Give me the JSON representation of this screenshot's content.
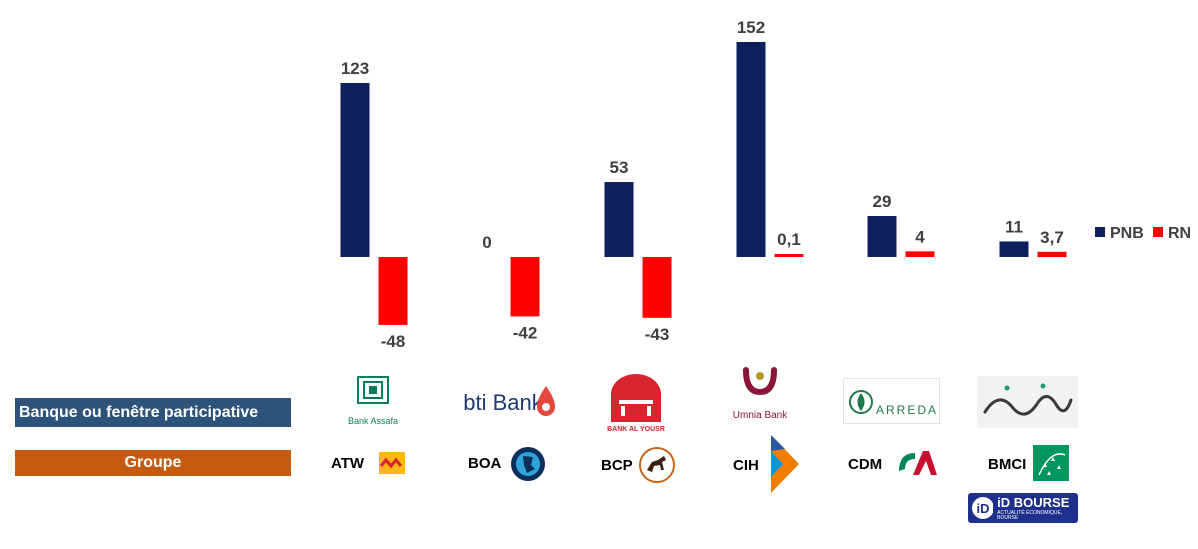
{
  "chart_data": {
    "type": "bar",
    "categories": [
      "ATW",
      "BOA",
      "BCP",
      "CIH",
      "CDM",
      "BMCI"
    ],
    "series": [
      {
        "name": "PNB",
        "values": [
          123,
          0,
          53,
          152,
          29,
          11
        ],
        "labels": [
          "123",
          "0",
          "53",
          "152",
          "29",
          "11"
        ],
        "color": "#0d1f5c"
      },
      {
        "name": "RN",
        "values": [
          -48,
          -42,
          -43,
          0.1,
          4,
          3.7
        ],
        "labels": [
          "-48",
          "-42",
          "-43",
          "0,1",
          "4",
          "3,7"
        ],
        "color": "#ff0000"
      }
    ],
    "legend": "right",
    "grid": false
  },
  "rows": {
    "bank_label": "Banque ou fenêtre participative",
    "group_label": "Groupe"
  },
  "banks": [
    {
      "name": "Bank Assafa",
      "icon": "bank-assafa-logo"
    },
    {
      "name": "bti Bank",
      "icon": "bti-bank-logo"
    },
    {
      "name": "BANK AL YOUSR",
      "icon": "bank-al-yousr-logo"
    },
    {
      "name": "Umnia Bank",
      "icon": "umnia-bank-logo"
    },
    {
      "name": "ARREDA",
      "icon": "arreda-logo"
    },
    {
      "name": "Najmah",
      "icon": "najmah-logo"
    }
  ],
  "groups": [
    {
      "name": "ATW",
      "icon": "attijariwafa-icon"
    },
    {
      "name": "BOA",
      "icon": "bank-of-africa-icon"
    },
    {
      "name": "BCP",
      "icon": "banque-populaire-horse-icon"
    },
    {
      "name": "CIH",
      "icon": "cih-arrow-icon"
    },
    {
      "name": "CDM",
      "icon": "credit-agricole-icon"
    },
    {
      "name": "BMCI",
      "icon": "bnp-paribas-icon"
    }
  ],
  "watermark": {
    "text": "iD BOURSE",
    "tagline": "ACTUALITÉ ÉCONOMIQUE, BOURSE"
  }
}
